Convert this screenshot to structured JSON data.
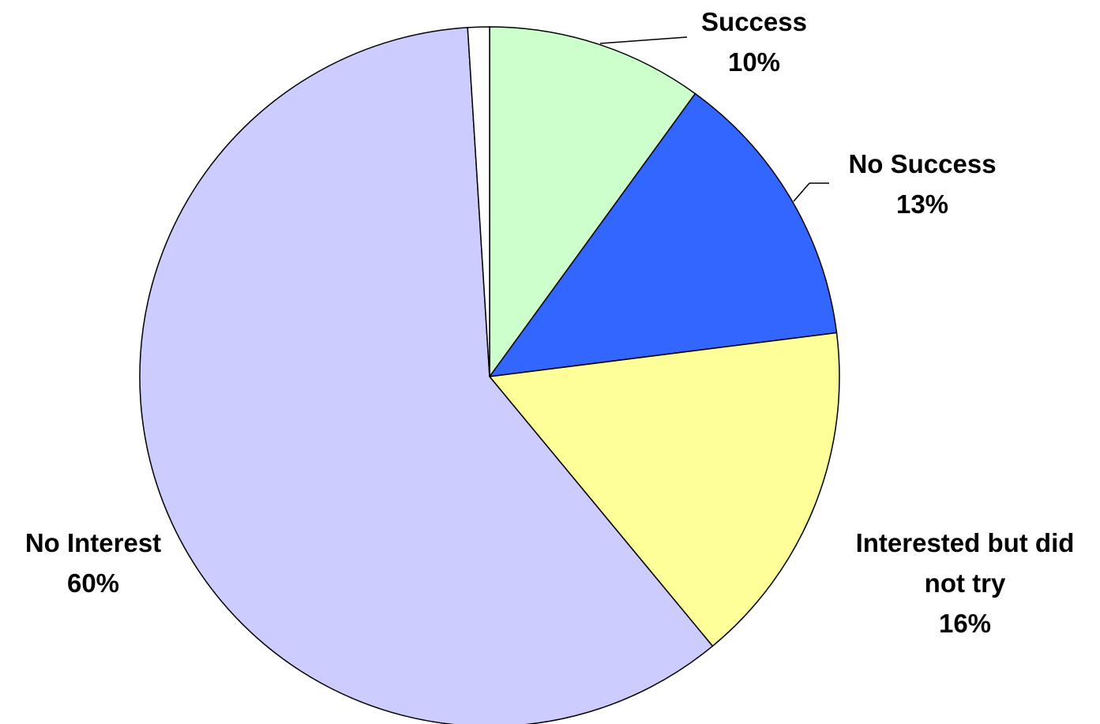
{
  "chart_data": {
    "type": "pie",
    "categories": [
      "Success",
      "No Success",
      "Interested but did not try",
      "No Interest",
      null
    ],
    "values": [
      10,
      13,
      16,
      60,
      1
    ],
    "value_labels": [
      "10%",
      "13%",
      "16%",
      "60%",
      null
    ],
    "colors": [
      "#CCFFCC",
      "#3366FF",
      "#FFFF99",
      "#CCCCFF",
      "#FFFFFF"
    ]
  }
}
